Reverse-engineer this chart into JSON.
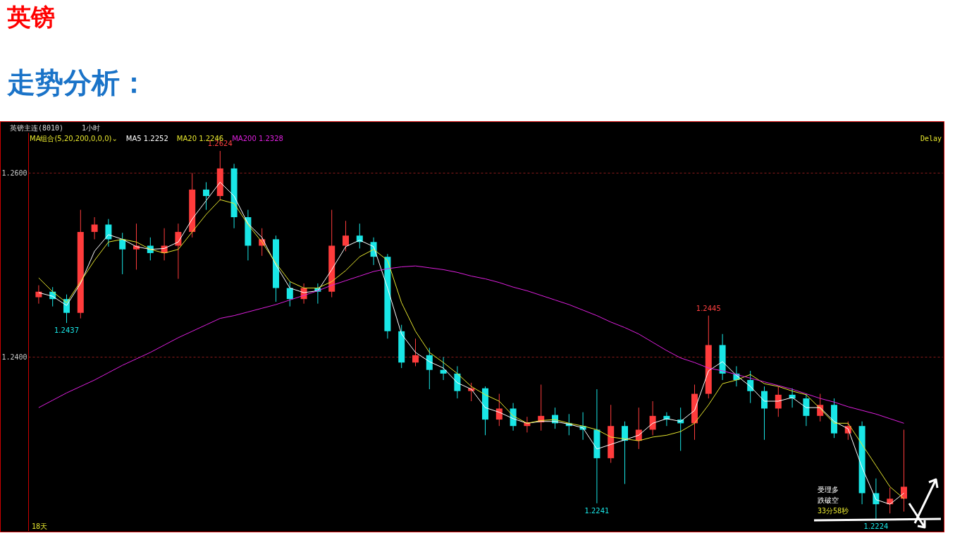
{
  "chart_data": {
    "type": "candlestick",
    "title": "英镑",
    "subtitle": "走势分析：",
    "categories": [
      null,
      null,
      null,
      null,
      null,
      null,
      null,
      null,
      null,
      null,
      null,
      null,
      null,
      null,
      null,
      null,
      null,
      null,
      null,
      null,
      null,
      null,
      null,
      null,
      null,
      null,
      null,
      null,
      null,
      null,
      null,
      null,
      null,
      null,
      null,
      null,
      null,
      null,
      null,
      null,
      null,
      null,
      null,
      null,
      null,
      null,
      null,
      null,
      null,
      null,
      null,
      null,
      null,
      null,
      null,
      null,
      null,
      null,
      null,
      null,
      null,
      null,
      null,
      null,
      null
    ],
    "ohlc": [
      [
        1.2465,
        1.2478,
        1.2458,
        1.2471
      ],
      [
        1.2471,
        1.2476,
        1.2455,
        1.2463
      ],
      [
        1.2463,
        1.2468,
        1.2437,
        1.2448
      ],
      [
        1.2448,
        1.256,
        1.2442,
        1.2536
      ],
      [
        1.2536,
        1.2552,
        1.2528,
        1.2544
      ],
      [
        1.2544,
        1.255,
        1.252,
        1.2528
      ],
      [
        1.2528,
        1.2535,
        1.249,
        1.2517
      ],
      [
        1.2517,
        1.2545,
        1.2495,
        1.2521
      ],
      [
        1.2521,
        1.253,
        1.2505,
        1.2513
      ],
      [
        1.2513,
        1.254,
        1.2505,
        1.2521
      ],
      [
        1.2521,
        1.2545,
        1.2485,
        1.2536
      ],
      [
        1.2536,
        1.26,
        1.253,
        1.2582
      ],
      [
        1.2582,
        1.259,
        1.256,
        1.2575
      ],
      [
        1.2575,
        1.2624,
        1.257,
        1.2605
      ],
      [
        1.2605,
        1.261,
        1.254,
        1.2552
      ],
      [
        1.2552,
        1.256,
        1.2505,
        1.2521
      ],
      [
        1.2521,
        1.254,
        1.251,
        1.2528
      ],
      [
        1.2528,
        1.2532,
        1.246,
        1.2475
      ],
      [
        1.2475,
        1.2482,
        1.2455,
        1.2463
      ],
      [
        1.2463,
        1.248,
        1.2458,
        1.2475
      ],
      [
        1.2475,
        1.248,
        1.2458,
        1.2471
      ],
      [
        1.2471,
        1.256,
        1.2465,
        1.2521
      ],
      [
        1.2521,
        1.2548,
        1.2515,
        1.2532
      ],
      [
        1.2532,
        1.2545,
        1.2518,
        1.2525
      ],
      [
        1.2525,
        1.253,
        1.25,
        1.2509
      ],
      [
        1.2509,
        1.2512,
        1.242,
        1.2428
      ],
      [
        1.2428,
        1.2435,
        1.2388,
        1.2394
      ],
      [
        1.2394,
        1.242,
        1.239,
        1.2402
      ],
      [
        1.2402,
        1.241,
        1.2365,
        1.2386
      ],
      [
        1.2386,
        1.24,
        1.2375,
        1.2382
      ],
      [
        1.2382,
        1.239,
        1.2355,
        1.2363
      ],
      [
        1.2363,
        1.2372,
        1.2352,
        1.2366
      ],
      [
        1.2366,
        1.2368,
        1.2315,
        1.2332
      ],
      [
        1.2332,
        1.236,
        1.2325,
        1.2344
      ],
      [
        1.2344,
        1.235,
        1.232,
        1.2325
      ],
      [
        1.2325,
        1.2335,
        1.2318,
        1.2329
      ],
      [
        1.2329,
        1.237,
        1.232,
        1.2336
      ],
      [
        1.2337,
        1.2345,
        1.2322,
        1.2328
      ],
      [
        1.2328,
        1.2338,
        1.2315,
        1.2325
      ],
      [
        1.2325,
        1.234,
        1.231,
        1.2321
      ],
      [
        1.2321,
        1.2365,
        1.2241,
        1.229
      ],
      [
        1.229,
        1.2348,
        1.2285,
        1.2325
      ],
      [
        1.2325,
        1.233,
        1.2262,
        1.2309
      ],
      [
        1.2309,
        1.2345,
        1.23,
        1.2321
      ],
      [
        1.2321,
        1.2352,
        1.2315,
        1.2336
      ],
      [
        1.2336,
        1.234,
        1.2325,
        1.2332
      ],
      [
        1.2332,
        1.2345,
        1.2298,
        1.2328
      ],
      [
        1.2328,
        1.237,
        1.231,
        1.236
      ],
      [
        1.236,
        1.2445,
        1.2355,
        1.2413
      ],
      [
        1.2413,
        1.2425,
        1.2375,
        1.2382
      ],
      [
        1.2382,
        1.239,
        1.2368,
        1.2375
      ],
      [
        1.2375,
        1.2385,
        1.235,
        1.2363
      ],
      [
        1.2363,
        1.2368,
        1.231,
        1.2344
      ],
      [
        1.2344,
        1.2368,
        1.2335,
        1.2359
      ],
      [
        1.2359,
        1.2366,
        1.2345,
        1.2355
      ],
      [
        1.2355,
        1.236,
        1.2325,
        1.2336
      ],
      [
        1.2336,
        1.236,
        1.233,
        1.2348
      ],
      [
        1.2348,
        1.2355,
        1.2312,
        1.2317
      ],
      [
        1.2317,
        1.233,
        1.231,
        1.2325
      ],
      [
        1.2325,
        1.233,
        1.224,
        1.2252
      ],
      [
        1.2252,
        1.2268,
        1.2224,
        1.224
      ],
      [
        1.224,
        1.2258,
        1.223,
        1.2246
      ],
      [
        1.2246,
        1.2321,
        1.2232,
        1.2259
      ],
      null,
      null
    ],
    "series": [
      {
        "name": "MA5 1.2252",
        "type": "line",
        "color": "#ffffff",
        "values": [
          1.247,
          1.2466,
          1.2456,
          1.248,
          1.2515,
          1.2533,
          1.2528,
          1.252,
          1.2517,
          1.2518,
          1.2525,
          1.255,
          1.257,
          1.259,
          1.2575,
          1.2545,
          1.253,
          1.25,
          1.2475,
          1.247,
          1.2472,
          1.2495,
          1.252,
          1.2527,
          1.252,
          1.2475,
          1.2425,
          1.2405,
          1.2395,
          1.2388,
          1.2372,
          1.2365,
          1.2345,
          1.234,
          1.2333,
          1.2328,
          1.233,
          1.233,
          1.2327,
          1.2323,
          1.23,
          1.2305,
          1.231,
          1.2315,
          1.2328,
          1.2333,
          1.233,
          1.2342,
          1.2385,
          1.2395,
          1.238,
          1.2368,
          1.2352,
          1.2352,
          1.2356,
          1.2345,
          1.2345,
          1.233,
          1.2322,
          1.228,
          1.2245,
          1.224,
          1.2252,
          null,
          null
        ]
      },
      {
        "name": "MA20 1.2246",
        "type": "line",
        "color": "#e6e62e",
        "values": [
          1.2486,
          1.2471,
          1.2459,
          1.2482,
          1.2505,
          1.2525,
          1.2528,
          1.2525,
          1.2517,
          1.2513,
          1.2517,
          1.2536,
          1.2555,
          1.2571,
          1.2567,
          1.2544,
          1.2525,
          1.2502,
          1.2482,
          1.2475,
          1.2475,
          1.2482,
          1.2494,
          1.2509,
          1.2517,
          1.2505,
          1.2459,
          1.2428,
          1.2405,
          1.2394,
          1.2382,
          1.2368,
          1.2359,
          1.2352,
          1.2336,
          1.2328,
          1.2331,
          1.2332,
          1.2328,
          1.2325,
          1.2321,
          1.2313,
          1.2311,
          1.2309,
          1.2313,
          1.2315,
          1.2319,
          1.2328,
          1.2348,
          1.2371,
          1.2375,
          1.2381,
          1.2371,
          1.2368,
          1.2363,
          1.2359,
          1.2344,
          1.2328,
          1.2328,
          1.2305,
          1.2282,
          1.2259,
          1.2246,
          null,
          null
        ]
      },
      {
        "name": "MA200 1.2328",
        "type": "line",
        "color": "#e020e0",
        "values": [
          1.2345,
          1.2353,
          1.2361,
          1.2368,
          1.2375,
          1.2383,
          1.2391,
          1.2398,
          1.2405,
          1.2413,
          1.2421,
          1.2428,
          1.2435,
          1.2442,
          1.2445,
          1.2449,
          1.2453,
          1.2457,
          1.2462,
          1.2467,
          1.2472,
          1.2478,
          1.2483,
          1.2488,
          1.2493,
          1.2496,
          1.2498,
          1.2499,
          1.2497,
          1.2495,
          1.2492,
          1.2488,
          1.2485,
          1.2481,
          1.2476,
          1.2472,
          1.2467,
          1.2462,
          1.2457,
          1.2451,
          1.2445,
          1.2438,
          1.2432,
          1.2425,
          1.2416,
          1.2407,
          1.2399,
          1.2394,
          1.2388,
          1.2385,
          1.2381,
          1.2377,
          1.2373,
          1.2369,
          1.2365,
          1.236,
          1.2355,
          1.2351,
          1.2346,
          1.2342,
          1.2338,
          1.2333,
          1.2328,
          null,
          null
        ]
      }
    ],
    "ylim": [
      1.2211,
      1.2644
    ],
    "yticks": [
      {
        "value": 1.24,
        "label": "1.2400"
      },
      {
        "value": 1.26,
        "label": "1.2600"
      }
    ],
    "grid": "y",
    "legend": "top left",
    "line_style": "solid",
    "annotations": [
      "英镑主连(8010)",
      "1小时",
      "MA组合(5,20,200,0,0,0)⌄",
      "Delay",
      "18天",
      "受理多",
      "跌破空",
      "33分58秒",
      {
        "text": "1.2624",
        "y": 1.2624
      },
      {
        "text": "1.2437",
        "y": 1.2437
      },
      {
        "text": "1.2241",
        "y": 1.2241
      },
      {
        "text": "1.2445",
        "y": 1.2445
      },
      {
        "text": "1.2224",
        "y": 1.2224
      }
    ]
  }
}
